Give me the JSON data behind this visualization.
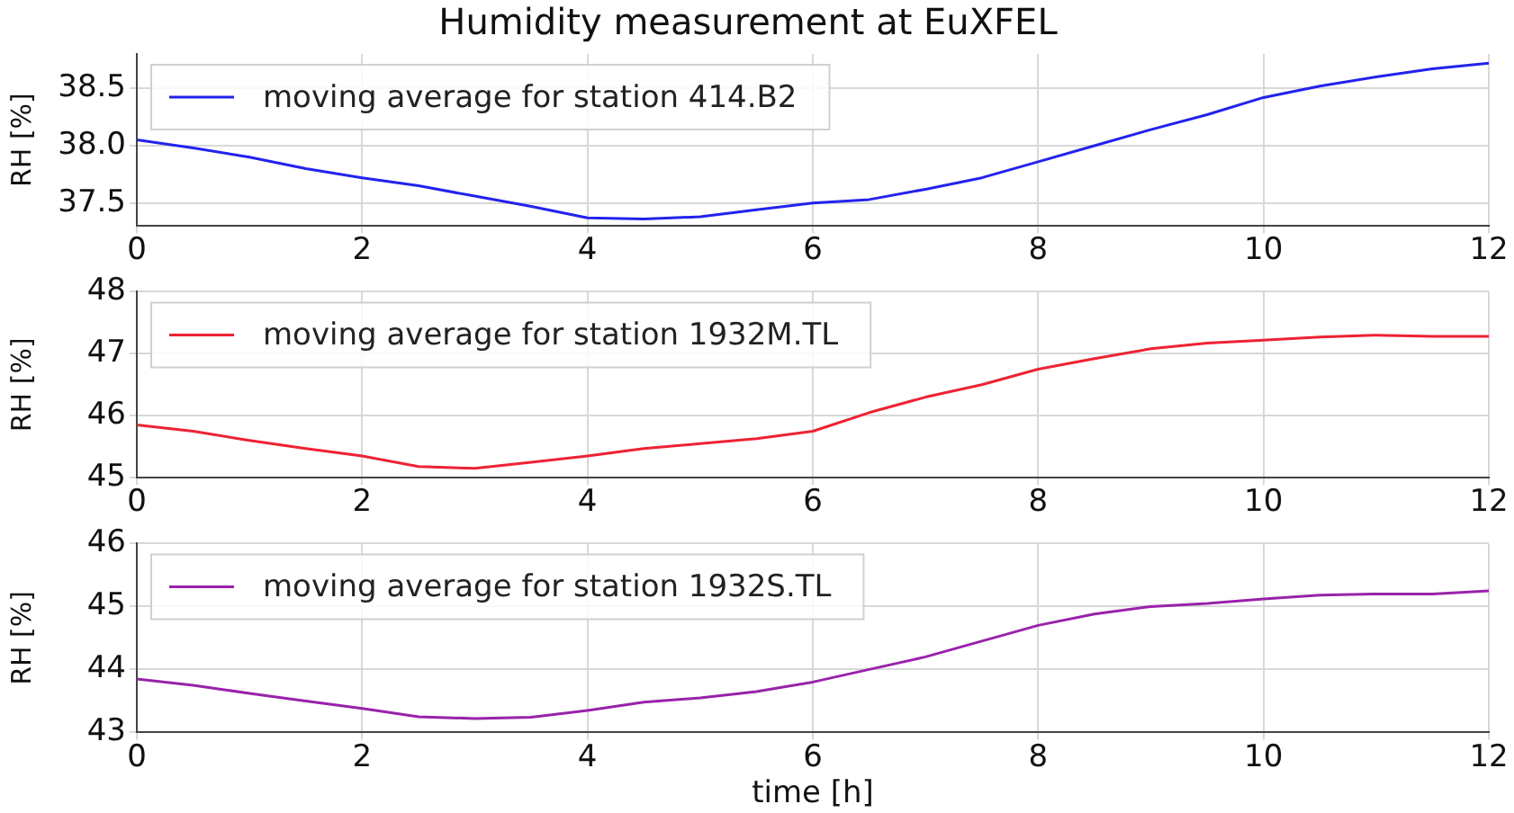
{
  "chart_data": [
    {
      "type": "line",
      "title": "Humidity measurement at EuXFEL",
      "ylabel": "RH [%]",
      "x": [
        0,
        0.5,
        1,
        1.5,
        2,
        2.5,
        3,
        3.5,
        4,
        4.5,
        5,
        5.5,
        6,
        6.5,
        7,
        7.5,
        8,
        8.5,
        9,
        9.5,
        10,
        10.5,
        11,
        11.5,
        12
      ],
      "series": [
        {
          "name": "moving average for station 414.B2",
          "color": "#2222ee",
          "values": [
            38.05,
            37.98,
            37.9,
            37.8,
            37.72,
            37.65,
            37.56,
            37.47,
            37.37,
            37.36,
            37.38,
            37.44,
            37.5,
            37.53,
            37.62,
            37.72,
            37.86,
            38.0,
            38.14,
            38.27,
            38.42,
            38.52,
            38.6,
            38.67,
            38.72
          ]
        }
      ],
      "xlim": [
        0,
        12
      ],
      "xticks": [
        0,
        2,
        4,
        6,
        8,
        10,
        12
      ],
      "ylim": [
        37.3,
        38.8
      ],
      "yticks": [
        {
          "value": 37.5,
          "label": "37.5"
        },
        {
          "value": 38,
          "label": "38.0"
        },
        {
          "value": 38.5,
          "label": "38.5"
        }
      ],
      "grid": true,
      "legend": "top left",
      "marker": "none",
      "line_style": "solid"
    },
    {
      "type": "line",
      "ylabel": "RH [%]",
      "x": [
        0,
        0.5,
        1,
        1.5,
        2,
        2.5,
        3,
        3.5,
        4,
        4.5,
        5,
        5.5,
        6,
        6.5,
        7,
        7.5,
        8,
        8.5,
        9,
        9.5,
        10,
        10.5,
        11,
        11.5,
        12
      ],
      "series": [
        {
          "name": "moving average for station 1932M.TL",
          "color": "#ee2233",
          "values": [
            45.85,
            45.75,
            45.6,
            45.47,
            45.35,
            45.18,
            45.15,
            45.25,
            45.35,
            45.47,
            45.55,
            45.63,
            45.75,
            46.05,
            46.3,
            46.5,
            46.75,
            46.92,
            47.08,
            47.17,
            47.22,
            47.27,
            47.3,
            47.28,
            47.28
          ]
        }
      ],
      "xlim": [
        0,
        12
      ],
      "xticks": [
        0,
        2,
        4,
        6,
        8,
        10,
        12
      ],
      "ylim": [
        45,
        48
      ],
      "yticks": [
        45,
        46,
        47,
        48
      ],
      "grid": true,
      "legend": "top left",
      "marker": "none",
      "line_style": "solid"
    },
    {
      "type": "line",
      "xlabel": "time [h]",
      "ylabel": "RH [%]",
      "x": [
        0,
        0.5,
        1,
        1.5,
        2,
        2.5,
        3,
        3.5,
        4,
        4.5,
        5,
        5.5,
        6,
        6.5,
        7,
        7.5,
        8,
        8.5,
        9,
        9.5,
        10,
        10.5,
        11,
        11.5,
        12
      ],
      "series": [
        {
          "name": "moving average for station 1932S.TL",
          "color": "#9922aa",
          "values": [
            43.85,
            43.75,
            43.62,
            43.5,
            43.38,
            43.25,
            43.22,
            43.24,
            43.35,
            43.48,
            43.55,
            43.65,
            43.8,
            44.0,
            44.2,
            44.45,
            44.7,
            44.88,
            45.0,
            45.05,
            45.12,
            45.18,
            45.2,
            45.2,
            45.25
          ]
        }
      ],
      "xlim": [
        0,
        12
      ],
      "xticks": [
        0,
        2,
        4,
        6,
        8,
        10,
        12
      ],
      "ylim": [
        43,
        46
      ],
      "yticks": [
        43,
        44,
        45,
        46
      ],
      "grid": true,
      "legend": "top left",
      "marker": "none",
      "line_style": "solid"
    }
  ]
}
